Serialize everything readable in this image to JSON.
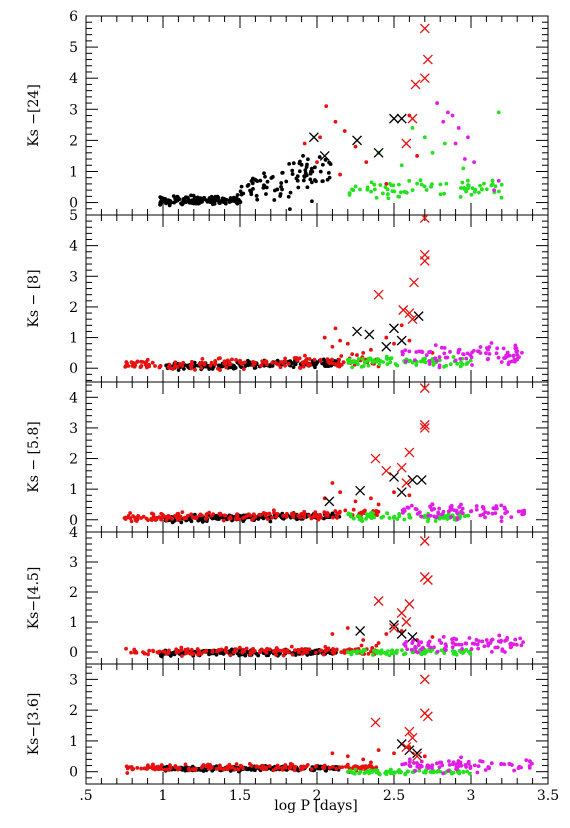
{
  "figure": {
    "xlabel": "log P [days]",
    "x_ticks": [
      ".5",
      "1",
      "1.5",
      "2",
      "2.5",
      "3",
      "3.5"
    ]
  },
  "series_styles": {
    "black": {
      "color": "#000000",
      "marker": "dot"
    },
    "red": {
      "color": "#e8110f",
      "marker": "dot"
    },
    "green": {
      "color": "#22e21c",
      "marker": "dot"
    },
    "magenta": {
      "color": "#e21ce8",
      "marker": "dot"
    },
    "black-cross": {
      "color": "#000000",
      "marker": "cross"
    },
    "red-cross": {
      "color": "#e8110f",
      "marker": "cross"
    }
  },
  "chart_data": [
    {
      "type": "scatter",
      "ylabel": "Ks −[24]",
      "xlim": [
        0.5,
        3.5
      ],
      "ylim": [
        -0.4,
        6.0
      ],
      "y_ticks": [
        0,
        1,
        2,
        3,
        4,
        5,
        6
      ],
      "series": [
        {
          "style": "black",
          "cloud": {
            "x_range": [
              0.98,
              1.5
            ],
            "y_center": 0.05,
            "y_spread": 0.15,
            "count": 160,
            "slope": 0.25
          }
        },
        {
          "style": "black",
          "cloud": {
            "x_range": [
              1.5,
              2.1
            ],
            "y_center": 0.4,
            "y_spread": 0.6,
            "count": 90,
            "slope": 2.8
          }
        },
        {
          "style": "red",
          "points": [
            [
              1.92,
              1.9
            ],
            [
              2.02,
              2.1
            ],
            [
              2.06,
              3.1
            ],
            [
              2.12,
              2.6
            ],
            [
              2.15,
              0.9
            ],
            [
              2.25,
              1.8
            ],
            [
              2.32,
              1.3
            ],
            [
              2.6,
              2.8
            ],
            [
              2.65,
              1.5
            ],
            [
              2.45,
              0.6
            ],
            [
              2.0,
              1.3
            ],
            [
              2.18,
              2.3
            ]
          ]
        },
        {
          "style": "green",
          "cloud": {
            "x_range": [
              2.2,
              3.2
            ],
            "y_center": 0.45,
            "y_spread": 0.35,
            "count": 75,
            "slope": 0
          }
        },
        {
          "style": "green",
          "points": [
            [
              2.62,
              2.4
            ],
            [
              2.7,
              2.1
            ],
            [
              2.83,
              1.9
            ],
            [
              3.18,
              2.9
            ],
            [
              2.4,
              1.6
            ],
            [
              2.55,
              1.2
            ],
            [
              2.75,
              1.6
            ],
            [
              2.95,
              1.1
            ]
          ]
        },
        {
          "style": "magenta",
          "points": [
            [
              2.78,
              3.2
            ],
            [
              2.82,
              2.6
            ],
            [
              2.88,
              2.8
            ],
            [
              2.9,
              1.9
            ],
            [
              2.92,
              2.4
            ],
            [
              2.96,
              1.4
            ],
            [
              3.02,
              1.3
            ],
            [
              3.18,
              0.7
            ],
            [
              3.15,
              0.4
            ],
            [
              2.85,
              2.9
            ],
            [
              2.98,
              2.1
            ]
          ]
        },
        {
          "style": "black-cross",
          "points": [
            [
              2.26,
              2.0
            ],
            [
              2.4,
              1.6
            ],
            [
              2.5,
              2.7
            ],
            [
              2.55,
              2.7
            ],
            [
              1.98,
              2.1
            ],
            [
              2.05,
              1.5
            ]
          ]
        },
        {
          "style": "red-cross",
          "points": [
            [
              2.7,
              5.6
            ],
            [
              2.72,
              4.6
            ],
            [
              2.7,
              4.0
            ],
            [
              2.64,
              3.8
            ],
            [
              2.62,
              2.7
            ],
            [
              2.58,
              1.9
            ]
          ]
        }
      ]
    },
    {
      "type": "scatter",
      "ylabel": "Ks − [8]",
      "xlim": [
        0.5,
        3.5
      ],
      "ylim": [
        -0.45,
        5.0
      ],
      "y_ticks": [
        0,
        1,
        2,
        3,
        4,
        5
      ],
      "series": [
        {
          "style": "black",
          "cloud": {
            "x_range": [
              0.98,
              2.15
            ],
            "y_center": 0.05,
            "y_spread": 0.12,
            "count": 220,
            "slope": 0.35
          }
        },
        {
          "style": "red",
          "cloud": {
            "x_range": [
              0.75,
              2.4
            ],
            "y_center": 0.1,
            "y_spread": 0.18,
            "count": 170,
            "slope": 0.3
          }
        },
        {
          "style": "red",
          "points": [
            [
              2.05,
              1.0
            ],
            [
              2.12,
              1.3
            ],
            [
              2.2,
              0.8
            ],
            [
              2.35,
              0.6
            ],
            [
              2.45,
              1.0
            ],
            [
              2.55,
              1.4
            ],
            [
              2.6,
              0.9
            ],
            [
              2.75,
              0.5
            ],
            [
              2.1,
              0.7
            ],
            [
              2.15,
              0.9
            ],
            [
              2.3,
              0.5
            ],
            [
              2.5,
              0.8
            ]
          ]
        },
        {
          "style": "green",
          "cloud": {
            "x_range": [
              2.2,
              3.0
            ],
            "y_center": 0.22,
            "y_spread": 0.18,
            "count": 80,
            "slope": 0
          }
        },
        {
          "style": "magenta",
          "cloud": {
            "x_range": [
              2.55,
              3.35
            ],
            "y_center": 0.45,
            "y_spread": 0.35,
            "count": 85,
            "slope": 0
          }
        },
        {
          "style": "black-cross",
          "points": [
            [
              2.26,
              1.2
            ],
            [
              2.34,
              1.1
            ],
            [
              2.5,
              1.3
            ],
            [
              2.66,
              1.7
            ],
            [
              2.55,
              0.9
            ],
            [
              2.45,
              0.7
            ]
          ]
        },
        {
          "style": "red-cross",
          "points": [
            [
              2.7,
              3.7
            ],
            [
              2.7,
              3.5
            ],
            [
              2.63,
              2.8
            ],
            [
              2.56,
              1.9
            ],
            [
              2.6,
              1.8
            ],
            [
              2.4,
              2.4
            ],
            [
              2.7,
              4.9
            ],
            [
              2.62,
              1.6
            ]
          ]
        }
      ]
    },
    {
      "type": "scatter",
      "ylabel": "Ks − [5.8]",
      "xlim": [
        0.5,
        3.5
      ],
      "ylim": [
        -0.4,
        4.5
      ],
      "y_ticks": [
        0,
        1,
        2,
        3,
        4
      ],
      "series": [
        {
          "style": "black",
          "cloud": {
            "x_range": [
              0.98,
              2.15
            ],
            "y_center": 0.03,
            "y_spread": 0.1,
            "count": 230,
            "slope": 0.3
          }
        },
        {
          "style": "red",
          "cloud": {
            "x_range": [
              0.75,
              2.4
            ],
            "y_center": 0.06,
            "y_spread": 0.15,
            "count": 180,
            "slope": 0.28
          }
        },
        {
          "style": "red",
          "points": [
            [
              2.05,
              0.7
            ],
            [
              2.15,
              0.9
            ],
            [
              2.25,
              0.6
            ],
            [
              2.4,
              0.5
            ],
            [
              2.5,
              0.9
            ],
            [
              2.6,
              0.8
            ],
            [
              2.75,
              0.5
            ],
            [
              2.1,
              1.2
            ],
            [
              2.35,
              0.7
            ]
          ]
        },
        {
          "style": "green",
          "cloud": {
            "x_range": [
              2.2,
              3.0
            ],
            "y_center": 0.1,
            "y_spread": 0.14,
            "count": 80,
            "slope": 0
          }
        },
        {
          "style": "magenta",
          "cloud": {
            "x_range": [
              2.55,
              3.35
            ],
            "y_center": 0.3,
            "y_spread": 0.28,
            "count": 80,
            "slope": 0
          }
        },
        {
          "style": "black-cross",
          "points": [
            [
              2.28,
              0.95
            ],
            [
              2.5,
              1.4
            ],
            [
              2.55,
              0.9
            ],
            [
              2.62,
              1.3
            ],
            [
              2.68,
              1.3
            ],
            [
              2.08,
              0.6
            ]
          ]
        },
        {
          "style": "red-cross",
          "points": [
            [
              2.7,
              3.1
            ],
            [
              2.7,
              3.0
            ],
            [
              2.7,
              4.3
            ],
            [
              2.6,
              2.2
            ],
            [
              2.55,
              1.7
            ],
            [
              2.45,
              1.6
            ],
            [
              2.38,
              2.0
            ],
            [
              2.58,
              1.2
            ]
          ]
        }
      ]
    },
    {
      "type": "scatter",
      "ylabel": "Ks−[4.5]",
      "xlim": [
        0.5,
        3.5
      ],
      "ylim": [
        -0.4,
        4.0
      ],
      "y_ticks": [
        0,
        1,
        2,
        3,
        4
      ],
      "series": [
        {
          "style": "black",
          "cloud": {
            "x_range": [
              0.98,
              2.15
            ],
            "y_center": -0.03,
            "y_spread": 0.1,
            "count": 230,
            "slope": 0.1
          }
        },
        {
          "style": "red",
          "cloud": {
            "x_range": [
              0.75,
              2.4
            ],
            "y_center": 0.0,
            "y_spread": 0.13,
            "count": 170,
            "slope": 0.12
          }
        },
        {
          "style": "red",
          "points": [
            [
              2.1,
              0.6
            ],
            [
              2.2,
              0.8
            ],
            [
              2.3,
              0.4
            ],
            [
              2.45,
              0.6
            ],
            [
              2.55,
              0.7
            ],
            [
              2.65,
              0.4
            ],
            [
              2.75,
              0.5
            ],
            [
              2.4,
              0.3
            ]
          ]
        },
        {
          "style": "green",
          "cloud": {
            "x_range": [
              2.2,
              3.0
            ],
            "y_center": 0.0,
            "y_spread": 0.1,
            "count": 80,
            "slope": 0
          }
        },
        {
          "style": "magenta",
          "cloud": {
            "x_range": [
              2.55,
              3.4
            ],
            "y_center": 0.25,
            "y_spread": 0.25,
            "count": 80,
            "slope": 0
          }
        },
        {
          "style": "black-cross",
          "points": [
            [
              2.28,
              0.7
            ],
            [
              2.5,
              0.9
            ],
            [
              2.55,
              0.6
            ],
            [
              2.62,
              0.5
            ]
          ]
        },
        {
          "style": "red-cross",
          "points": [
            [
              2.7,
              3.7
            ],
            [
              2.7,
              2.5
            ],
            [
              2.72,
              2.4
            ],
            [
              2.6,
              1.6
            ],
            [
              2.55,
              1.3
            ],
            [
              2.4,
              1.7
            ],
            [
              2.5,
              0.8
            ],
            [
              2.58,
              1.0
            ]
          ]
        }
      ]
    },
    {
      "type": "scatter",
      "ylabel": "Ks−[3.6]",
      "xlim": [
        0.5,
        3.5
      ],
      "ylim": [
        -0.4,
        3.5
      ],
      "y_ticks": [
        0,
        1,
        2,
        3
      ],
      "series": [
        {
          "style": "black",
          "cloud": {
            "x_range": [
              0.98,
              2.15
            ],
            "y_center": 0.1,
            "y_spread": 0.08,
            "count": 230,
            "slope": 0.05
          }
        },
        {
          "style": "red",
          "cloud": {
            "x_range": [
              0.75,
              2.4
            ],
            "y_center": 0.12,
            "y_spread": 0.12,
            "count": 170,
            "slope": 0.08
          }
        },
        {
          "style": "red",
          "points": [
            [
              2.1,
              0.6
            ],
            [
              2.2,
              0.5
            ],
            [
              2.3,
              0.4
            ],
            [
              2.4,
              0.7
            ],
            [
              2.5,
              0.6
            ],
            [
              2.6,
              0.8
            ],
            [
              2.7,
              0.5
            ],
            [
              2.35,
              0.3
            ]
          ]
        },
        {
          "style": "green",
          "cloud": {
            "x_range": [
              2.2,
              3.0
            ],
            "y_center": 0.0,
            "y_spread": 0.08,
            "count": 80,
            "slope": 0
          }
        },
        {
          "style": "magenta",
          "cloud": {
            "x_range": [
              2.55,
              3.4
            ],
            "y_center": 0.2,
            "y_spread": 0.2,
            "count": 80,
            "slope": 0
          }
        },
        {
          "style": "black-cross",
          "points": [
            [
              2.55,
              0.9
            ],
            [
              2.6,
              0.7
            ],
            [
              2.65,
              0.6
            ]
          ]
        },
        {
          "style": "red-cross",
          "points": [
            [
              2.7,
              3.0
            ],
            [
              2.7,
              1.9
            ],
            [
              2.72,
              1.8
            ],
            [
              2.6,
              1.3
            ],
            [
              2.62,
              1.1
            ],
            [
              2.38,
              1.6
            ],
            [
              2.58,
              0.8
            ],
            [
              2.65,
              0.5
            ]
          ]
        }
      ]
    }
  ]
}
